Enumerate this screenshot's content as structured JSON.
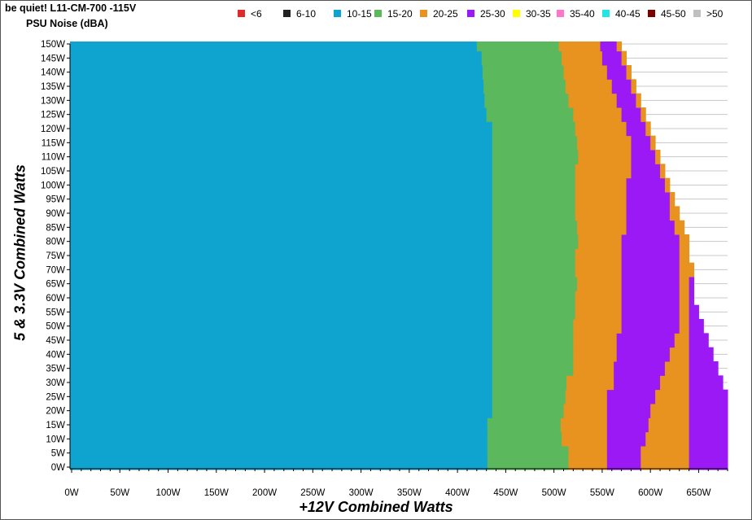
{
  "chart_data": {
    "type": "heatmap",
    "title": "be quiet! L11-CM-700 -115V",
    "subtitle": "PSU Noise (dBA)",
    "xlabel": "+12V Combined Watts",
    "ylabel": "5 & 3.3V Combined Watts",
    "xlim": [
      0,
      680
    ],
    "ylim": [
      0,
      150
    ],
    "x_ticks": [
      "0W",
      "50W",
      "100W",
      "150W",
      "200W",
      "250W",
      "300W",
      "350W",
      "400W",
      "450W",
      "500W",
      "550W",
      "600W",
      "650W"
    ],
    "y_ticks": [
      "0W",
      "5W",
      "10W",
      "15W",
      "20W",
      "25W",
      "30W",
      "35W",
      "40W",
      "45W",
      "50W",
      "55W",
      "60W",
      "65W",
      "70W",
      "75W",
      "80W",
      "85W",
      "90W",
      "95W",
      "100W",
      "105W",
      "110W",
      "115W",
      "120W",
      "125W",
      "130W",
      "135W",
      "140W",
      "145W",
      "150W"
    ],
    "grid": true,
    "legend_position": "top",
    "legend": [
      {
        "label": "<6",
        "color": "#e02b2b"
      },
      {
        "label": "6-10",
        "color": "#222222"
      },
      {
        "label": "10-15",
        "color": "#0fa4cf"
      },
      {
        "label": "15-20",
        "color": "#5cb85c"
      },
      {
        "label": "20-25",
        "color": "#e8921f"
      },
      {
        "label": "25-30",
        "color": "#9b19f5"
      },
      {
        "label": "30-35",
        "color": "#ffff00"
      },
      {
        "label": "35-40",
        "color": "#ff77cc"
      },
      {
        "label": "40-45",
        "color": "#22e5e5"
      },
      {
        "label": "45-50",
        "color": "#7a0000"
      },
      {
        "label": ">50",
        "color": "#c0c0c0"
      }
    ],
    "y_levels": [
      0,
      5,
      10,
      15,
      20,
      25,
      30,
      35,
      40,
      45,
      50,
      55,
      60,
      65,
      70,
      75,
      80,
      85,
      90,
      95,
      100,
      105,
      110,
      115,
      120,
      125,
      130,
      135,
      140,
      145,
      150
    ],
    "boundaries_x": {
      "10-15_to_15-20": [
        431,
        431,
        431,
        431,
        436,
        436,
        436,
        436,
        436,
        436,
        436,
        436,
        436,
        436,
        436,
        436,
        436,
        436,
        436,
        436,
        436,
        436,
        436,
        436,
        436,
        430,
        428,
        427,
        426,
        425,
        420
      ],
      "15-20_to_20-25": [
        515,
        515,
        508,
        507,
        510,
        512,
        513,
        520,
        520,
        520,
        520,
        522,
        522,
        524,
        522,
        522,
        525,
        524,
        522,
        522,
        522,
        522,
        525,
        524,
        522,
        520,
        515,
        512,
        510,
        508,
        505
      ],
      "20-25_to_25-30": [
        555,
        555,
        555,
        555,
        555,
        555,
        562,
        562,
        565,
        565,
        570,
        570,
        570,
        570,
        570,
        570,
        570,
        575,
        575,
        575,
        575,
        580,
        580,
        580,
        575,
        570,
        565,
        560,
        555,
        550,
        548
      ],
      "25-30_to_20-25": [
        590,
        590,
        595,
        598,
        600,
        605,
        610,
        615,
        620,
        625,
        630,
        630,
        630,
        630,
        630,
        630,
        630,
        625,
        620,
        620,
        615,
        610,
        605,
        600,
        595,
        590,
        585,
        580,
        575,
        570,
        565
      ],
      "20-25_to_25-30_outer": [
        640,
        640,
        640,
        640,
        640,
        640,
        640,
        640,
        640,
        640,
        640,
        640,
        640,
        640,
        645,
        640,
        640,
        635,
        630,
        625,
        620,
        615,
        610,
        605,
        600,
        595,
        590,
        585,
        580,
        575,
        570
      ],
      "25-30_end": [
        680,
        680,
        680,
        680,
        680,
        680,
        675,
        670,
        665,
        660,
        655,
        650,
        645,
        645,
        640,
        640,
        635,
        630,
        625,
        620,
        615,
        610,
        605,
        600,
        595,
        590,
        585,
        580,
        575,
        570,
        565
      ],
      "10-15_top_row": 150
    },
    "regions": [
      {
        "range": "10-15",
        "x_from": 0
      },
      {
        "range": "15-20"
      },
      {
        "range": "20-25"
      },
      {
        "range": "25-30"
      },
      {
        "range": "20-25"
      },
      {
        "range": "25-30"
      }
    ]
  }
}
